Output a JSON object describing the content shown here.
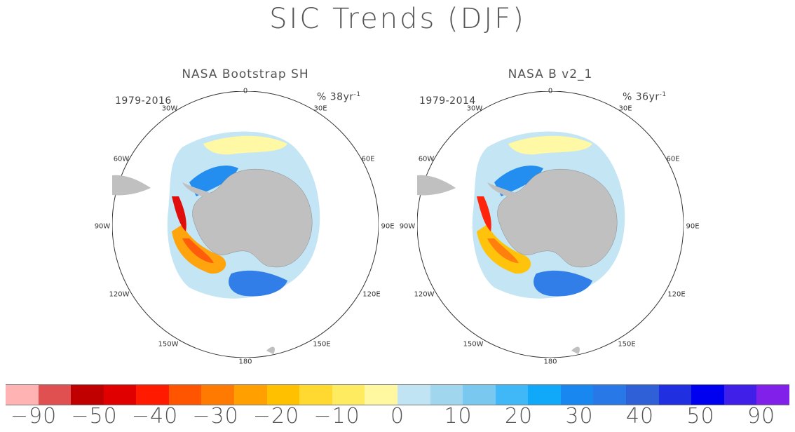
{
  "title": "SIC Trends (DJF)",
  "panels": [
    {
      "title": "NASA Bootstrap SH",
      "period": "1979-2016",
      "unit_prefix": "% 38yr",
      "unit_exp": "-1",
      "lon_labels": [
        "0",
        "30E",
        "60E",
        "90E",
        "120E",
        "150E",
        "180",
        "150W",
        "120W",
        "90W",
        "60W",
        "30W"
      ]
    },
    {
      "title": "NASA B v2_1",
      "period": "1979-2014",
      "unit_prefix": "% 36yr",
      "unit_exp": "-1",
      "lon_labels": [
        "0",
        "30E",
        "60E",
        "90E",
        "120E",
        "150E",
        "180",
        "150W",
        "120W",
        "90W",
        "60W",
        "30W"
      ]
    }
  ],
  "colorbar": {
    "colors": [
      "#ffb3b3",
      "#e05050",
      "#c00000",
      "#e00000",
      "#ff1a00",
      "#ff5500",
      "#ff7a00",
      "#ffa000",
      "#ffc000",
      "#ffd830",
      "#ffeb60",
      "#fff8a0",
      "#c0e4f4",
      "#a0d6ee",
      "#78c8f0",
      "#40b8f8",
      "#10a8f8",
      "#1888f0",
      "#2878e8",
      "#3060d8",
      "#2030e0",
      "#0000f0",
      "#4020e8",
      "#8020e8"
    ],
    "labels": [
      "−90",
      "−50",
      "−40",
      "−30",
      "−20",
      "−10",
      "0",
      "10",
      "20",
      "30",
      "40",
      "50",
      "90"
    ]
  },
  "legend_colors": {
    "land": "#c0c0c0",
    "ocean_background": "#ffffff",
    "outline": "#333333"
  }
}
